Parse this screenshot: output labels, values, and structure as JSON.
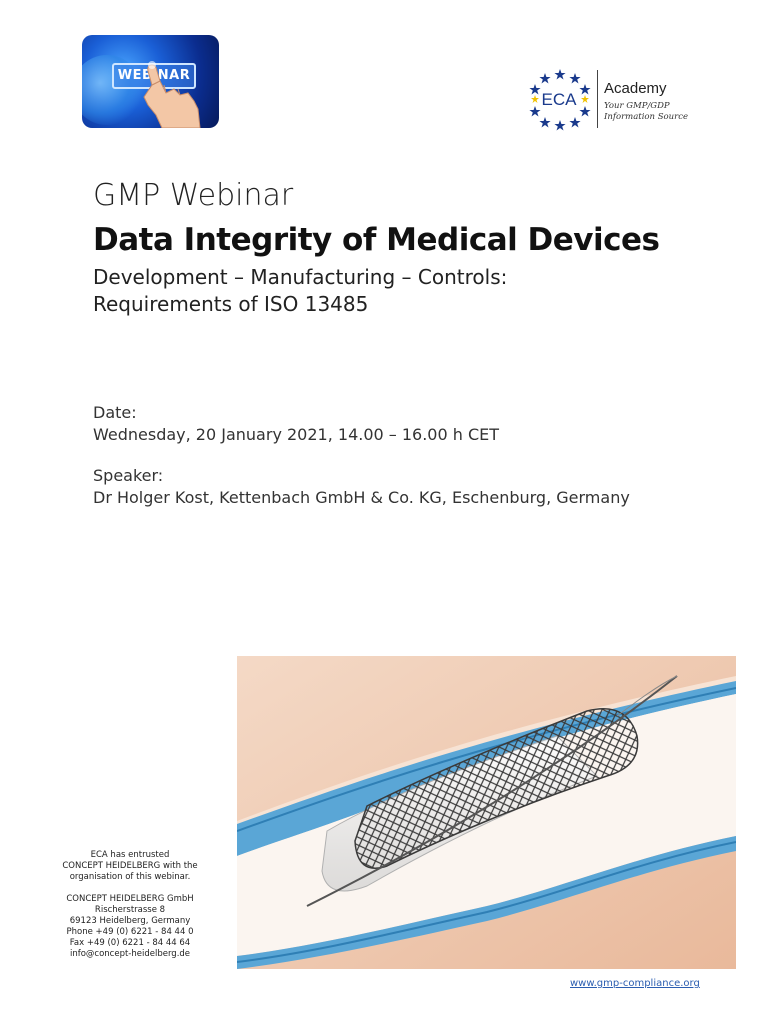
{
  "badge": {
    "label": "WEBINAR"
  },
  "logo": {
    "mark": "ECA",
    "name": "Academy",
    "tagline_1": "Your GMP/GDP",
    "tagline_2": "Information Source"
  },
  "header": {
    "kicker": "GMP Webinar",
    "title": "Data Integrity of Medical Devices",
    "subtitle_1": "Development – Manufacturing – Controls:",
    "subtitle_2": "Requirements of ISO 13485"
  },
  "event": {
    "date_label": "Date:",
    "date_value": "Wednesday, 20 January 2021, 14.00 – 16.00 h CET",
    "speaker_label": "Speaker:",
    "speaker_value": "Dr Holger Kost, Kettenbach GmbH & Co. KG, Eschenburg, Germany"
  },
  "contact": {
    "line_1": "ECA has entrusted",
    "line_2": "CONCEPT HEIDELBERG with the",
    "line_3": "organisation of this webinar.",
    "company": "CONCEPT HEIDELBERG GmbH",
    "street": "Rischerstrasse 8",
    "city": "69123 Heidelberg, Germany",
    "phone": "Phone +49 (0) 6221 - 84 44 0",
    "fax": "Fax +49 (0) 6221 - 84 44 64",
    "email": "info@concept-heidelberg.de"
  },
  "footer": {
    "website": "www.gmp-compliance.org"
  },
  "colors": {
    "badge_blue": "#1a5fd6",
    "logo_blue": "#1a3a8c",
    "star_gold": "#f2c200",
    "link_blue": "#2a5db0",
    "vessel_blue": "#5aa6d6",
    "tissue": "#e8b89a"
  }
}
